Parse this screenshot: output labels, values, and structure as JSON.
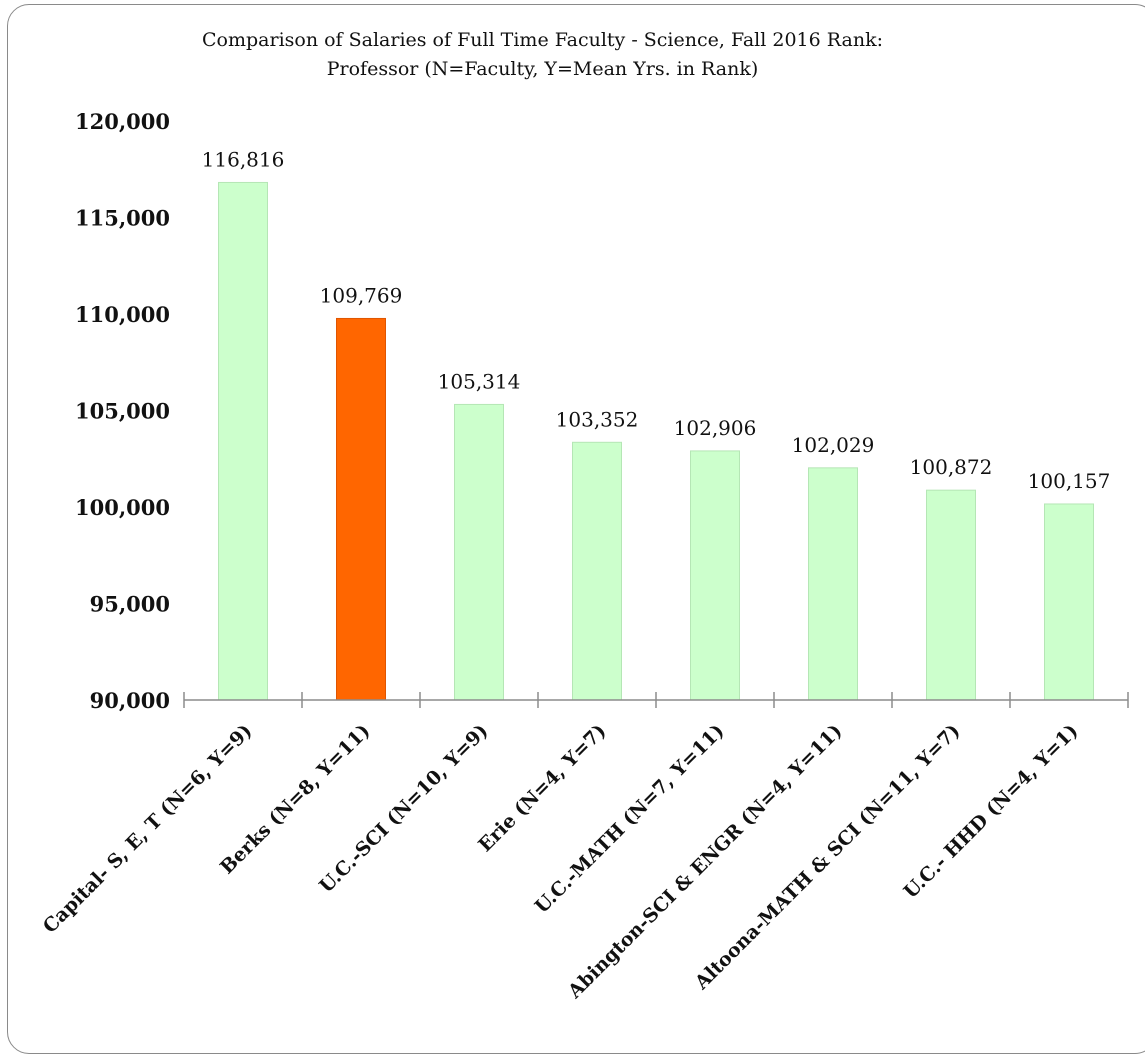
{
  "chart_data": {
    "type": "bar",
    "title": "Comparison of Salaries of Full Time Faculty - Science, Fall 2016  Rank:\nProfessor (N=Faculty, Y=Mean Yrs. in Rank)",
    "categories": [
      "Capital- S, E, T (N=6, Y=9)",
      "Berks (N=8, Y=11)",
      "U.C.-SCI (N=10, Y=9)",
      "Erie (N=4, Y=7)",
      "U.C.-MATH (N=7, Y=11)",
      "Abington-SCI & ENGR (N=4, Y=11)",
      "Altoona-MATH & SCI (N=11, Y=7)",
      "U.C.- HHD (N=4, Y=1)"
    ],
    "values": [
      116816,
      109769,
      105314,
      103352,
      102906,
      102029,
      100872,
      100157
    ],
    "value_labels": [
      "116,816",
      "109,769",
      "105,314",
      "103,352",
      "102,906",
      "102,029",
      "100,872",
      "100,157"
    ],
    "bar_colors": [
      "#ccffcc",
      "#ff6600",
      "#ccffcc",
      "#ccffcc",
      "#ccffcc",
      "#ccffcc",
      "#ccffcc",
      "#ccffcc"
    ],
    "highlighted_category": "Berks (N=8, Y=11)",
    "ylim": [
      90000,
      120000
    ],
    "yticks": [
      90000,
      95000,
      100000,
      105000,
      110000,
      115000,
      120000
    ],
    "ytick_labels": [
      "90,000",
      "95,000",
      "100,000",
      "105,000",
      "110,000",
      "115,000",
      "120,000"
    ],
    "xlabel": "",
    "ylabel": "",
    "grid": false,
    "legend": "none"
  }
}
